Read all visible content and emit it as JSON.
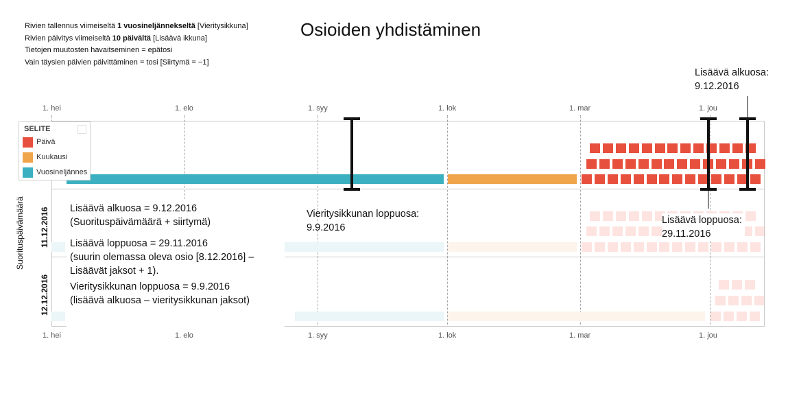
{
  "settings": {
    "lines": [
      {
        "pre": "Rivien tallennus viimeiseltä ",
        "bold": "1 vuosineljännekseltä",
        "post": " [Vieritysikkuna]"
      },
      {
        "pre": "Rivien päivitys viimeiseltä ",
        "bold": "10 päivältä",
        "post": " [Lisäävä ikkuna]"
      },
      {
        "pre": "Tietojen muutosten havaitseminen = epätosi",
        "bold": "",
        "post": ""
      },
      {
        "pre": "Vain täysien päivien päivittäminen = tosi [Siirtymä = −1]",
        "bold": "",
        "post": ""
      }
    ]
  },
  "title": "Osioiden yhdistäminen",
  "axis": {
    "ticks": [
      "1. hei",
      "1. elo",
      "1. syy",
      "1. lok",
      "1. mar",
      "1. jou"
    ]
  },
  "legend": {
    "title": "SELITE",
    "items": [
      {
        "label": "Päivä",
        "color": "#e8503e"
      },
      {
        "label": "Kuukausi",
        "color": "#f0a54b"
      },
      {
        "label": "Vuosineljännes",
        "color": "#3ab0c0"
      }
    ]
  },
  "y_axis_label": "Suorituspäivämäärä",
  "rows": [
    "11.12.2016",
    "12.12.2016"
  ],
  "annotations": {
    "top_right_label": "Lisäävä alkuosa:",
    "top_right_value": "9.12.2016",
    "rolling_end_label": "Vieritysikkunan loppuosa:",
    "rolling_end_value": "9.9.2016",
    "incr_end_label": "Lisäävä loppuosa:",
    "incr_end_value": "29.11.2016",
    "callouts": [
      [
        "Lisäävä alkuosa = 9.12.2016",
        "(Suorituspäivämäärä + siirtymä)"
      ],
      [
        "Lisäävä loppuosa = 29.11.2016",
        "(suurin olemassa oleva osio [8.12.2016] –",
        "Lisäävät jaksot + 1)."
      ],
      [
        "Vieritysikkunan loppuosa = 9.9.2016",
        "(lisäävä alkuosa – vieritysikkunan jaksot)"
      ]
    ]
  }
}
